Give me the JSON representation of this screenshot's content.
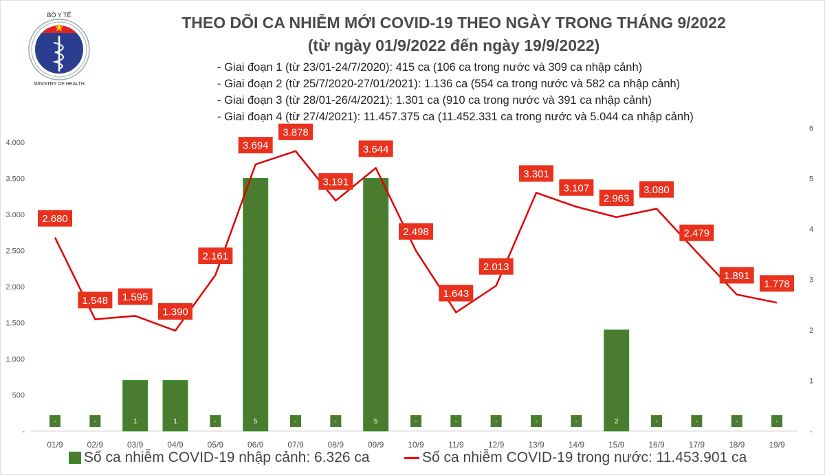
{
  "logo": {
    "text_top": "BỘ Y TẾ",
    "text_bottom": "MINISTRY OF HEALTH"
  },
  "title": "THEO DÕI CA NHIỄM MỚI COVID-19 THEO NGÀY TRONG THÁNG 9/2022",
  "subtitle": "(từ ngày 01/9/2022 đến ngày 19/9/2022)",
  "notes": [
    "- Giai đoạn 1 (từ 23/01-24/7/2020): 415 ca (106 ca trong nước và 309 ca nhập cảnh)",
    "- Giai đoạn 2 (từ 25/7/2020-27/01/2021): 1.136 ca (554 ca trong nước và 582 ca nhập cảnh)",
    "- Giai đoạn 3 (từ 28/01-26/4/2021): 1.301 ca (910 ca trong nước và 391 ca nhập cảnh)",
    "- Giai đoạn 4 (từ 27/4/2021): 11.457.375 ca (11.452.331 ca trong nước và 5.044 ca nhập cảnh)"
  ],
  "colors": {
    "bar": "#4a7b2f",
    "bar_edge": "#2e9a2e",
    "line": "#e00000",
    "label_bg": "#e8321e"
  },
  "chart_data": {
    "type": "bar+line",
    "categories": [
      "01/9",
      "02/9",
      "03/9",
      "04/9",
      "05/9",
      "06/9",
      "07/9",
      "08/9",
      "09/9",
      "10/9",
      "11/9",
      "12/9",
      "13/9",
      "14/9",
      "15/9",
      "16/9",
      "17/9",
      "18/9",
      "19/9"
    ],
    "series": [
      {
        "name": "Số ca nhiễm COVID-19 nhập cảnh: 6.326 ca",
        "type": "bar",
        "axis": "right",
        "values": [
          0,
          0,
          1,
          1,
          0,
          5,
          0,
          0,
          5,
          0,
          0,
          0,
          0,
          0,
          2,
          0,
          0,
          0,
          0
        ],
        "labels": [
          "-",
          "-",
          "1",
          "1",
          "-",
          "5",
          "-",
          "-",
          "5",
          "-",
          "-",
          "-",
          "-",
          "-",
          "2",
          "-",
          "-",
          "-",
          "-"
        ]
      },
      {
        "name": "Số ca nhiễm COVID-19 trong nước: 11.453.901 ca",
        "type": "line",
        "axis": "left",
        "values": [
          2680,
          1548,
          1595,
          1390,
          2161,
          3694,
          3878,
          3191,
          3644,
          2498,
          1643,
          2013,
          3301,
          3107,
          2963,
          3080,
          2479,
          1891,
          1778
        ],
        "labels": [
          "2.680",
          "1.548",
          "1.595",
          "1.390",
          "2.161",
          "3.694",
          "3.878",
          "3.191",
          "3.644",
          "2.498",
          "1.643",
          "2.013",
          "3.301",
          "3.107",
          "2.963",
          "3.080",
          "2.479",
          "1.891",
          "1.778"
        ]
      }
    ],
    "y_left": {
      "range": [
        0,
        4000
      ],
      "ticks": [
        0,
        500,
        1000,
        1500,
        2000,
        2500,
        3000,
        3500,
        4000
      ],
      "tick_labels": [
        "-",
        "500",
        "1.000",
        "1.500",
        "2.000",
        "2.500",
        "3.000",
        "3.500",
        "4.000"
      ]
    },
    "y_right": {
      "range": [
        0,
        6
      ],
      "ticks": [
        0,
        1,
        2,
        3,
        4,
        5,
        6
      ],
      "tick_labels": [
        "-",
        "1",
        "2",
        "3",
        "4",
        "5",
        "6"
      ]
    },
    "grid": false,
    "legend": "bottom"
  }
}
